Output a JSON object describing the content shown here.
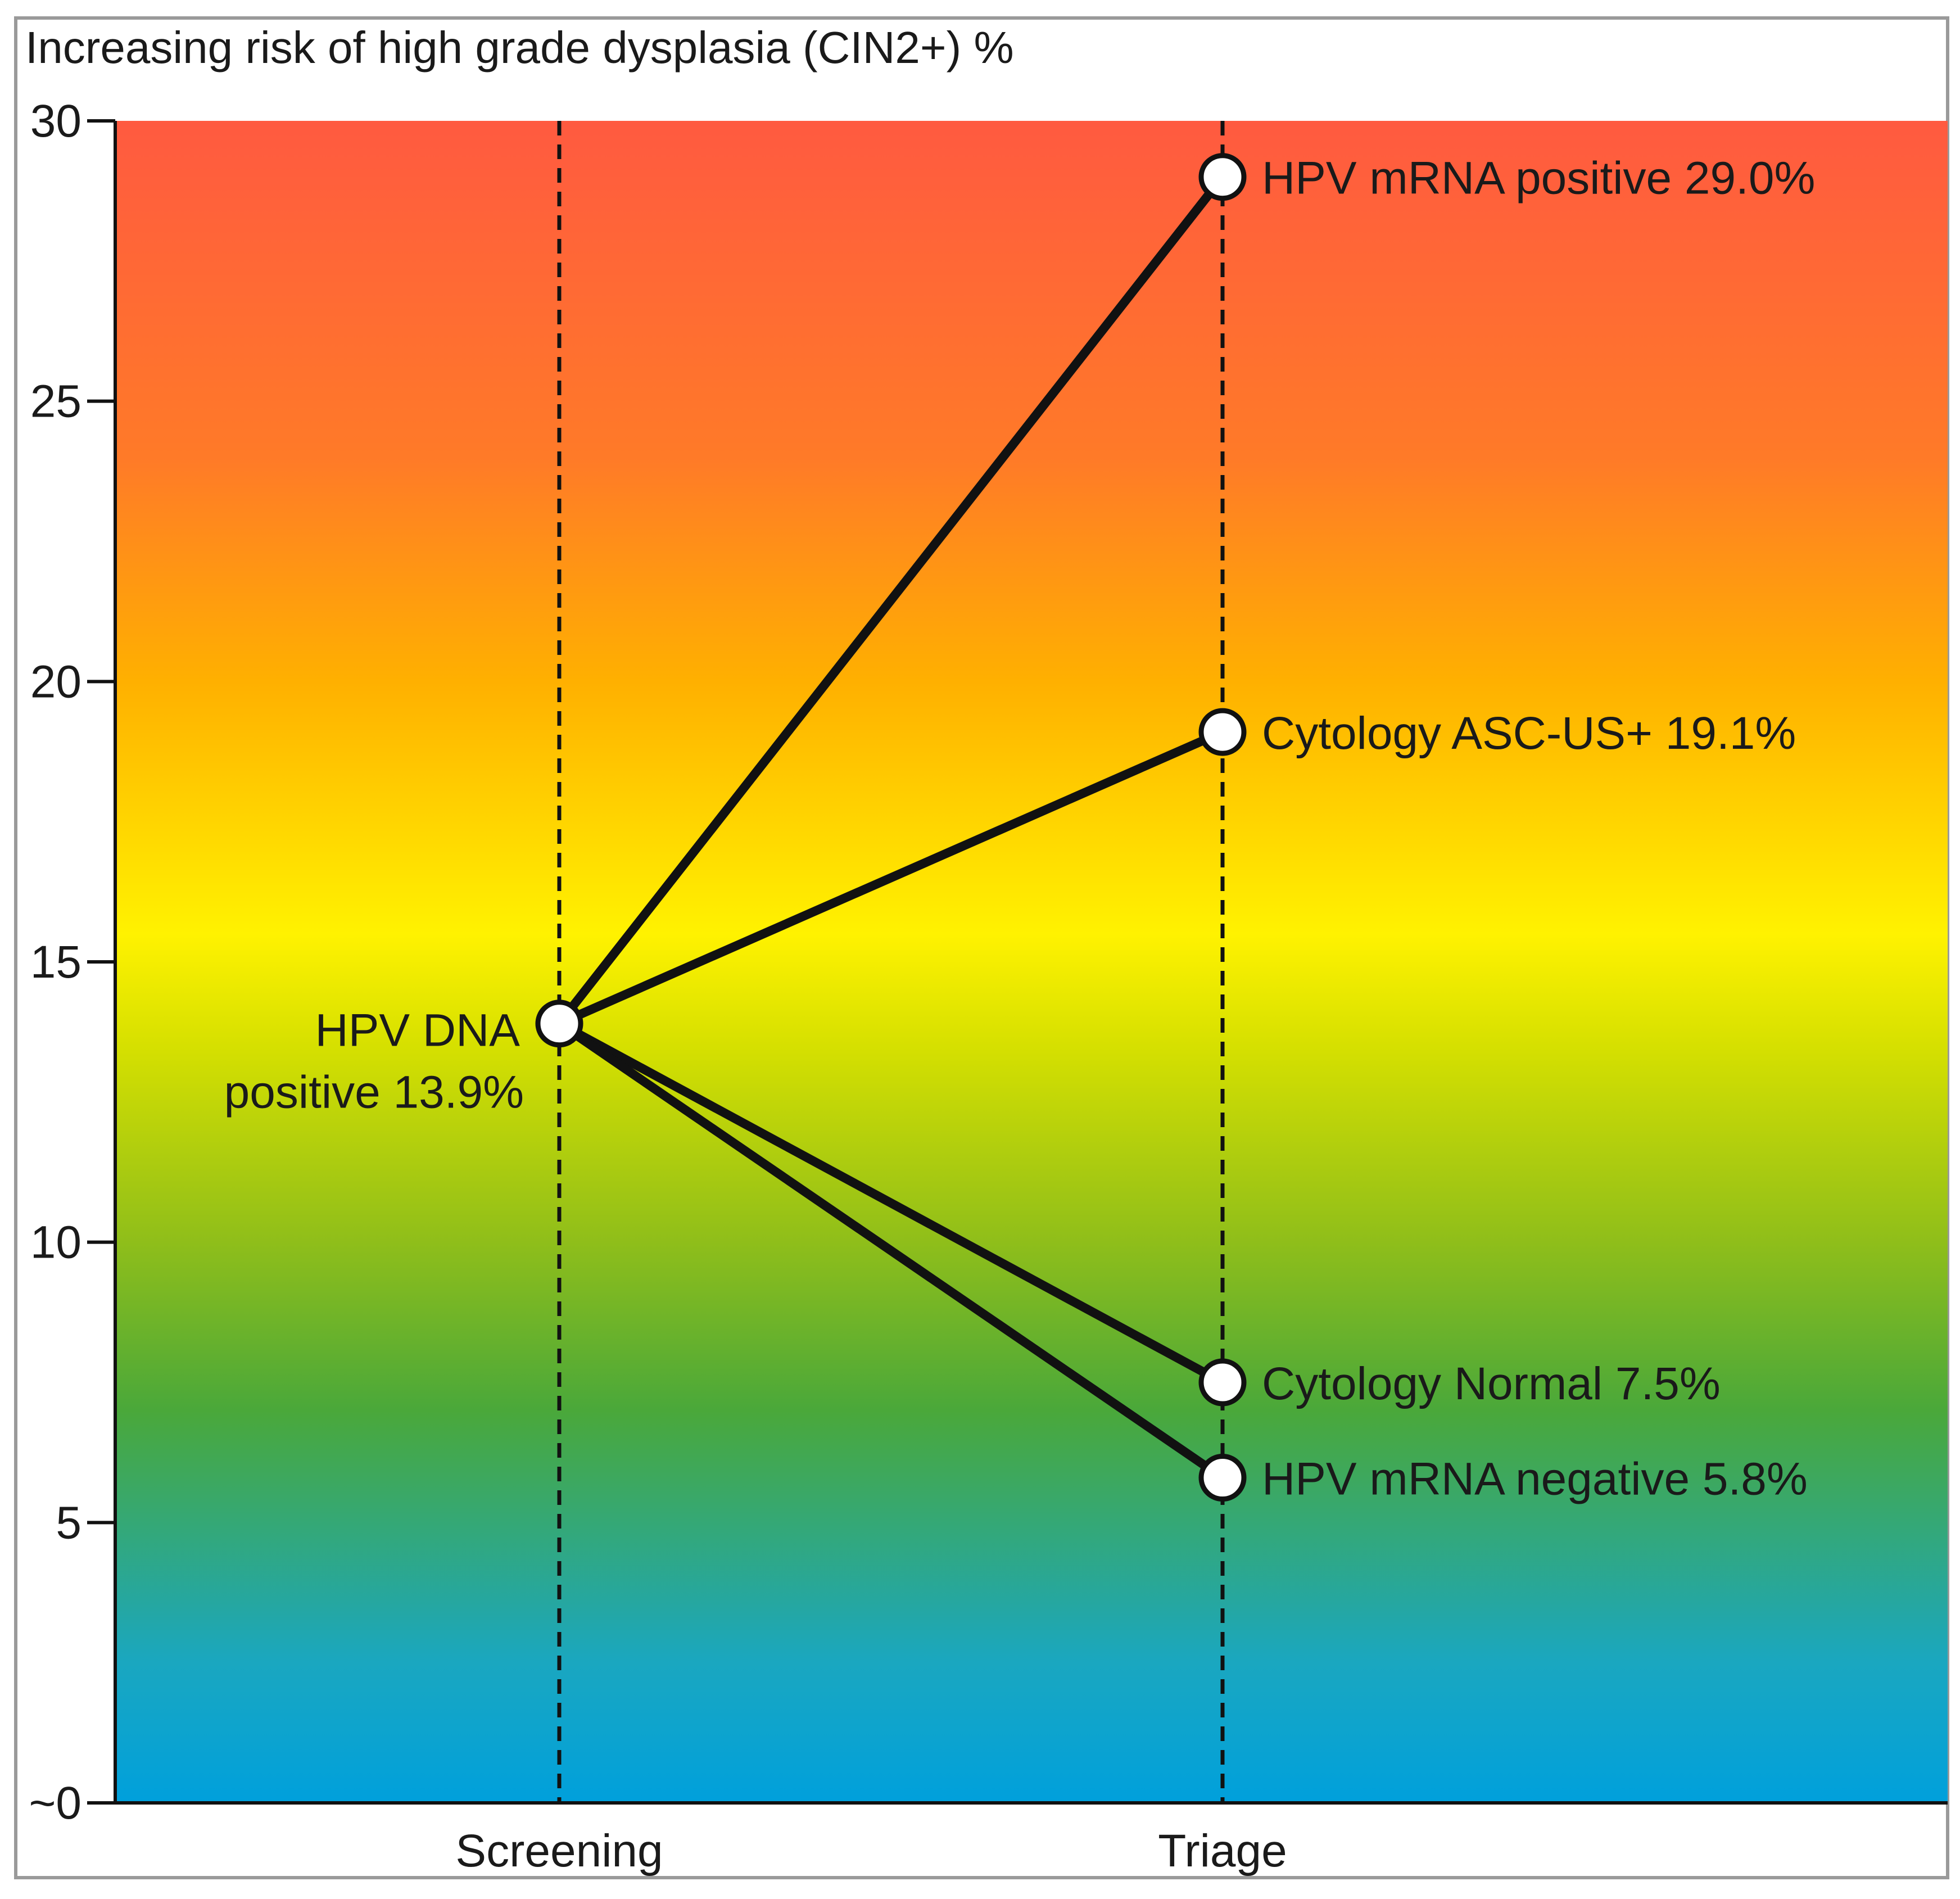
{
  "chart_data": {
    "type": "line",
    "title": "Increasing risk of high grade dysplasia (CIN2+) %",
    "xlabel": "",
    "ylabel": "",
    "ylim": [
      0,
      30
    ],
    "y_ticks": [
      {
        "value": 0,
        "label": "~0"
      },
      {
        "value": 5,
        "label": "5"
      },
      {
        "value": 10,
        "label": "10"
      },
      {
        "value": 15,
        "label": "15"
      },
      {
        "value": 20,
        "label": "20"
      },
      {
        "value": 25,
        "label": "25"
      },
      {
        "value": 30,
        "label": "30"
      }
    ],
    "categories": [
      "Screening",
      "Triage"
    ],
    "gradient_stops": [
      {
        "value": 0,
        "color": "#00a0dc"
      },
      {
        "value": 2.5,
        "color": "#1aa7c0"
      },
      {
        "value": 7,
        "color": "#4aa83a"
      },
      {
        "value": 10,
        "color": "#8fbe1a"
      },
      {
        "value": 13.5,
        "color": "#d6e000"
      },
      {
        "value": 15.5,
        "color": "#fff200"
      },
      {
        "value": 20,
        "color": "#ffb000"
      },
      {
        "value": 24,
        "color": "#ff7a28"
      },
      {
        "value": 30,
        "color": "#ff5a40"
      }
    ],
    "origin": {
      "category": "Screening",
      "value": 13.9,
      "label_line1": "HPV DNA",
      "label_line2": "positive 13.9%"
    },
    "series": [
      {
        "name": "HPV mRNA positive",
        "values": [
          13.9,
          29.0
        ],
        "label": "HPV mRNA positive 29.0%"
      },
      {
        "name": "Cytology ASC-US+",
        "values": [
          13.9,
          19.1
        ],
        "label": "Cytology ASC-US+ 19.1%"
      },
      {
        "name": "Cytology Normal",
        "values": [
          13.9,
          7.5
        ],
        "label": "Cytology Normal 7.5%"
      },
      {
        "name": "HPV mRNA negative",
        "values": [
          13.9,
          5.8
        ],
        "label": "HPV mRNA negative 5.8%"
      }
    ]
  }
}
